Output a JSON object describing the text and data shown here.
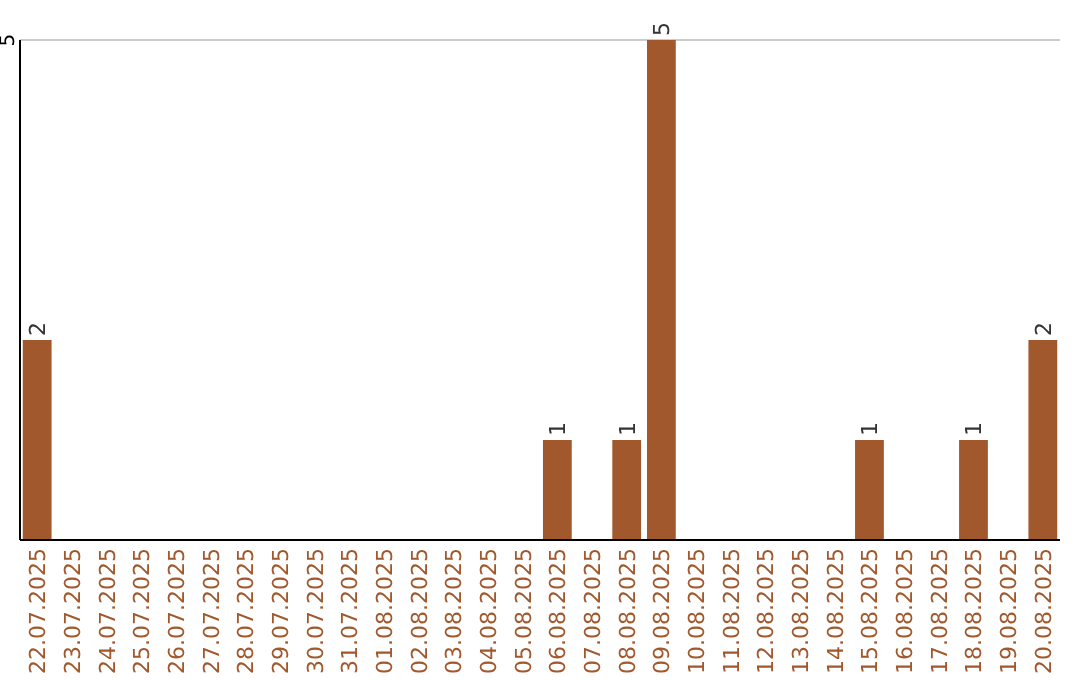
{
  "chart_data": {
    "type": "bar",
    "categories": [
      "22.07.2025",
      "23.07.2025",
      "24.07.2025",
      "25.07.2025",
      "26.07.2025",
      "27.07.2025",
      "28.07.2025",
      "29.07.2025",
      "30.07.2025",
      "31.07.2025",
      "01.08.2025",
      "02.08.2025",
      "03.08.2025",
      "04.08.2025",
      "05.08.2025",
      "06.08.2025",
      "07.08.2025",
      "08.08.2025",
      "09.08.2025",
      "10.08.2025",
      "11.08.2025",
      "12.08.2025",
      "13.08.2025",
      "14.08.2025",
      "15.08.2025",
      "16.08.2025",
      "17.08.2025",
      "18.08.2025",
      "19.08.2025",
      "20.08.2025"
    ],
    "values": [
      2,
      0,
      0,
      0,
      0,
      0,
      0,
      0,
      0,
      0,
      0,
      0,
      0,
      0,
      0,
      1,
      0,
      1,
      5,
      0,
      0,
      0,
      0,
      0,
      1,
      0,
      0,
      1,
      0,
      2
    ],
    "value_labels": [
      "2",
      null,
      null,
      null,
      null,
      null,
      null,
      null,
      null,
      null,
      null,
      null,
      null,
      null,
      null,
      "1",
      null,
      "1",
      "5",
      null,
      null,
      null,
      null,
      null,
      "1",
      null,
      null,
      "1",
      null,
      "2"
    ],
    "color": "#a0582c",
    "ylim": [
      0,
      5
    ],
    "yticks": [
      5
    ],
    "ref_lines": [
      {
        "axis": "y",
        "value": 5,
        "color": "#cccccc"
      }
    ]
  }
}
